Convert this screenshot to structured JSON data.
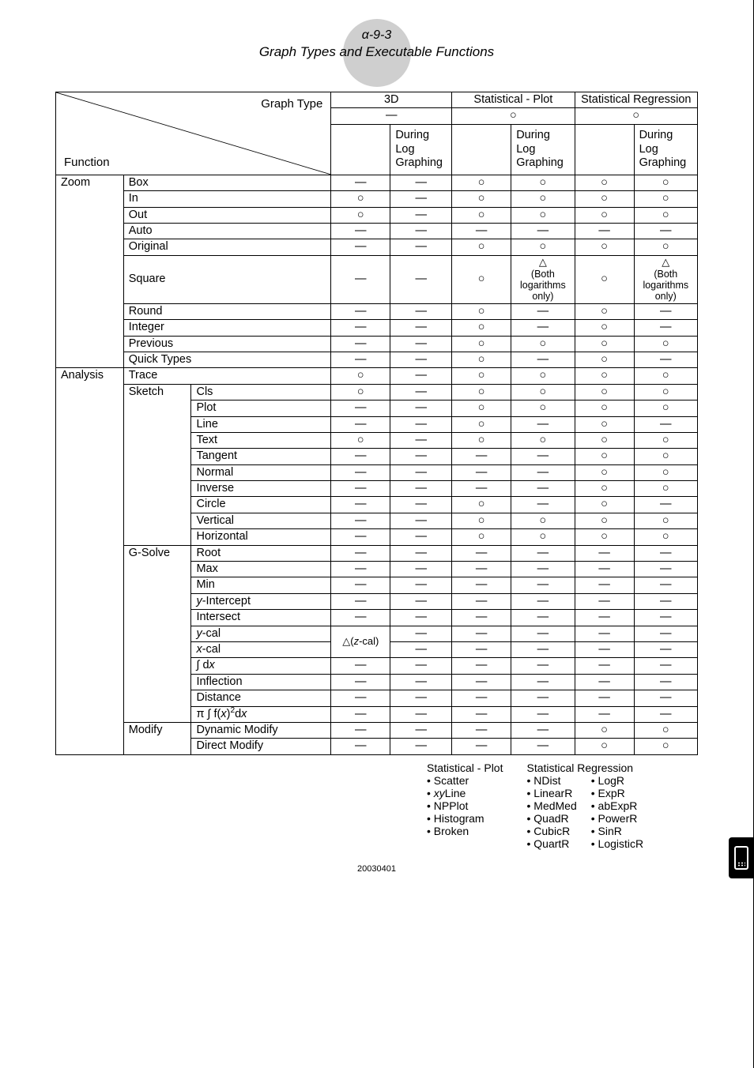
{
  "header": {
    "code": "α-9-3",
    "title": "Graph Types and Executable Functions"
  },
  "labels": {
    "graph_type": "Graph Type",
    "function": "Function",
    "col_3d": "3D",
    "col_sp": "Statistical - Plot",
    "col_sr": "Statistical Regression",
    "dlg": "During Log Graphing",
    "both_log": "(Both logarithms only)"
  },
  "sym": {
    "yes": "○",
    "no": "—",
    "tri": "△",
    "zcal": "△(z-cal)"
  },
  "groups": [
    {
      "name": "Zoom",
      "rows": [
        {
          "sub": "",
          "item": "Box",
          "c": [
            "—",
            "—",
            "○",
            "○",
            "○",
            "○"
          ]
        },
        {
          "sub": "",
          "item": "In",
          "c": [
            "○",
            "—",
            "○",
            "○",
            "○",
            "○"
          ]
        },
        {
          "sub": "",
          "item": "Out",
          "c": [
            "○",
            "—",
            "○",
            "○",
            "○",
            "○"
          ]
        },
        {
          "sub": "",
          "item": "Auto",
          "c": [
            "—",
            "—",
            "—",
            "—",
            "—",
            "—"
          ]
        },
        {
          "sub": "",
          "item": "Original",
          "c": [
            "—",
            "—",
            "○",
            "○",
            "○",
            "○"
          ]
        },
        {
          "sub": "",
          "item": "Square",
          "c": [
            "—",
            "—",
            "○",
            "TRI",
            "○",
            "TRI"
          ]
        },
        {
          "sub": "",
          "item": "Round",
          "c": [
            "—",
            "—",
            "○",
            "—",
            "○",
            "—"
          ]
        },
        {
          "sub": "",
          "item": "Integer",
          "c": [
            "—",
            "—",
            "○",
            "—",
            "○",
            "—"
          ]
        },
        {
          "sub": "",
          "item": "Previous",
          "c": [
            "—",
            "—",
            "○",
            "○",
            "○",
            "○"
          ]
        },
        {
          "sub": "",
          "item": "Quick Types",
          "c": [
            "—",
            "—",
            "○",
            "—",
            "○",
            "—"
          ]
        }
      ]
    },
    {
      "name": "Analysis",
      "rows": [
        {
          "sub": "",
          "item": "Trace",
          "c": [
            "○",
            "—",
            "○",
            "○",
            "○",
            "○"
          ]
        },
        {
          "sub": "Sketch",
          "item": "Cls",
          "c": [
            "○",
            "—",
            "○",
            "○",
            "○",
            "○"
          ]
        },
        {
          "sub": "",
          "item": "Plot",
          "c": [
            "—",
            "—",
            "○",
            "○",
            "○",
            "○"
          ]
        },
        {
          "sub": "",
          "item": "Line",
          "c": [
            "—",
            "—",
            "○",
            "—",
            "○",
            "—"
          ]
        },
        {
          "sub": "",
          "item": "Text",
          "c": [
            "○",
            "—",
            "○",
            "○",
            "○",
            "○"
          ]
        },
        {
          "sub": "",
          "item": "Tangent",
          "c": [
            "—",
            "—",
            "—",
            "—",
            "○",
            "○"
          ]
        },
        {
          "sub": "",
          "item": "Normal",
          "c": [
            "—",
            "—",
            "—",
            "—",
            "○",
            "○"
          ]
        },
        {
          "sub": "",
          "item": "Inverse",
          "c": [
            "—",
            "—",
            "—",
            "—",
            "○",
            "○"
          ]
        },
        {
          "sub": "",
          "item": "Circle",
          "c": [
            "—",
            "—",
            "○",
            "—",
            "○",
            "—"
          ]
        },
        {
          "sub": "",
          "item": "Vertical",
          "c": [
            "—",
            "—",
            "○",
            "○",
            "○",
            "○"
          ]
        },
        {
          "sub": "",
          "item": "Horizontal",
          "c": [
            "—",
            "—",
            "○",
            "○",
            "○",
            "○"
          ]
        },
        {
          "sub": "G-Solve",
          "item": "Root",
          "c": [
            "—",
            "—",
            "—",
            "—",
            "—",
            "—"
          ]
        },
        {
          "sub": "",
          "item": "Max",
          "c": [
            "—",
            "—",
            "—",
            "—",
            "—",
            "—"
          ]
        },
        {
          "sub": "",
          "item": "Min",
          "c": [
            "—",
            "—",
            "—",
            "—",
            "—",
            "—"
          ]
        },
        {
          "sub": "",
          "item": "y-Intercept",
          "c": [
            "—",
            "—",
            "—",
            "—",
            "—",
            "—"
          ],
          "it_prefix": "y"
        },
        {
          "sub": "",
          "item": "Intersect",
          "c": [
            "—",
            "—",
            "—",
            "—",
            "—",
            "—"
          ]
        },
        {
          "sub": "",
          "item": "y-cal",
          "c": [
            "ZCAL",
            "—",
            "—",
            "—",
            "—",
            "—"
          ],
          "it_prefix": "y",
          "merge_down": true
        },
        {
          "sub": "",
          "item": "x-cal",
          "c": [
            "",
            "—",
            "—",
            "—",
            "—",
            "—"
          ],
          "it_prefix": "x"
        },
        {
          "sub": "",
          "item": "∫ dx",
          "c": [
            "—",
            "—",
            "—",
            "—",
            "—",
            "—"
          ],
          "intdx": true
        },
        {
          "sub": "",
          "item": "Inflection",
          "c": [
            "—",
            "—",
            "—",
            "—",
            "—",
            "—"
          ]
        },
        {
          "sub": "",
          "item": "Distance",
          "c": [
            "—",
            "—",
            "—",
            "—",
            "—",
            "—"
          ]
        },
        {
          "sub": "",
          "item": "π ∫ f(x)2dx",
          "c": [
            "—",
            "—",
            "—",
            "—",
            "—",
            "—"
          ],
          "pifx": true
        },
        {
          "sub": "Modify",
          "item": "Dynamic Modify",
          "c": [
            "—",
            "—",
            "—",
            "—",
            "○",
            "○"
          ]
        },
        {
          "sub": "",
          "item": "Direct Modify",
          "c": [
            "—",
            "—",
            "—",
            "—",
            "○",
            "○"
          ]
        }
      ]
    }
  ],
  "footer": {
    "sp_head": "Statistical - Plot",
    "sp_items": [
      "Scatter",
      "xyLine",
      "NPPlot",
      "Histogram",
      "Broken"
    ],
    "sr_head": "Statistical Regression",
    "sr_items_left": [
      "NDist",
      "LinearR",
      "MedMed",
      "QuadR",
      "CubicR",
      "QuartR"
    ],
    "sr_items_right": [
      "LogR",
      "ExpR",
      "abExpR",
      "PowerR",
      "SinR",
      "LogisticR"
    ]
  },
  "date": "20030401"
}
